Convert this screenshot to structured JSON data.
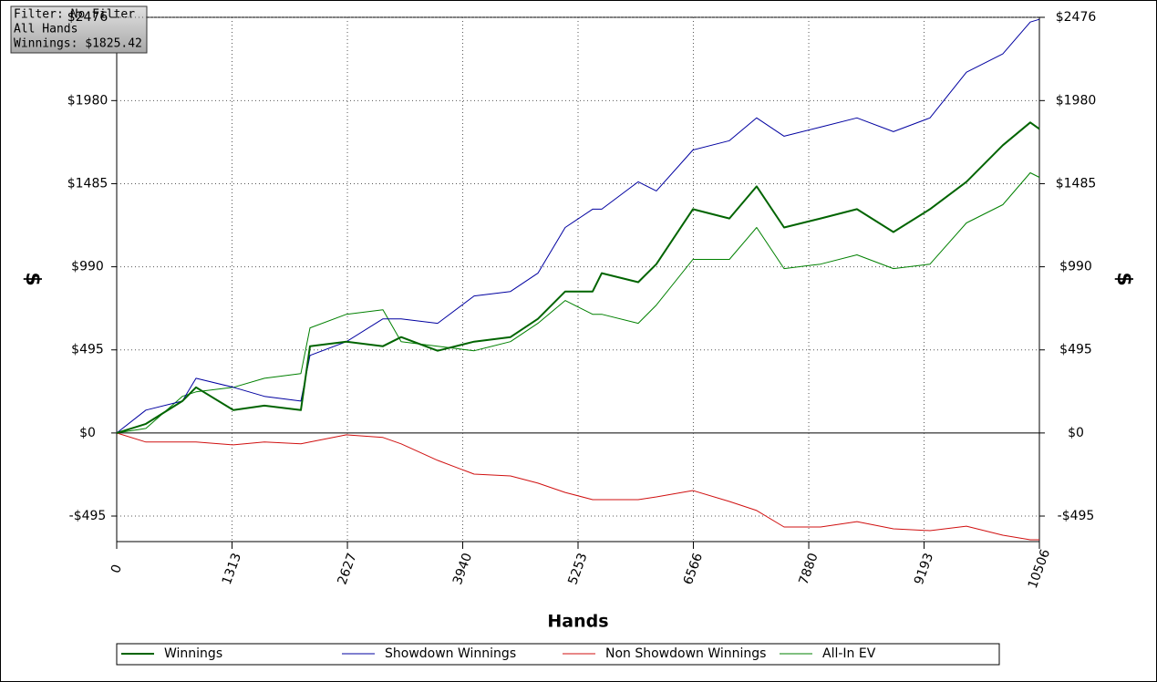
{
  "chart_data": {
    "type": "line",
    "info": [
      "Filter: No Filter",
      "All Hands",
      "Winnings: $1825.42"
    ],
    "x_label": "Hands",
    "y_label": "$",
    "x": [
      0,
      332,
      747,
      903,
      1329,
      1682,
      2097,
      2201,
      2616,
      3031,
      3239,
      3654,
      4069,
      4484,
      4796,
      5107,
      5419,
      5523,
      5938,
      6145,
      6561,
      6976,
      7287,
      7599,
      8014,
      8429,
      8844,
      9260,
      9675,
      10090,
      10402,
      10506
    ],
    "series": [
      {
        "name": "Winnings",
        "color": "#006400",
        "values": [
          0,
          54,
          190,
          272,
          136,
          163,
          136,
          517,
          544,
          517,
          571,
          490,
          544,
          571,
          680,
          843,
          843,
          952,
          898,
          1006,
          1333,
          1278,
          1469,
          1224,
          1278,
          1333,
          1197,
          1333,
          1496,
          1714,
          1850,
          1811
        ]
      },
      {
        "name": "Showdown Winnings",
        "color": "#0000a0",
        "values": [
          0,
          136,
          190,
          326,
          272,
          218,
          190,
          462,
          544,
          680,
          680,
          653,
          816,
          843,
          952,
          1224,
          1333,
          1333,
          1496,
          1442,
          1686,
          1741,
          1877,
          1768,
          1822,
          1877,
          1795,
          1877,
          2149,
          2258,
          2448,
          2464
        ]
      },
      {
        "name": "Non Showdown Winnings",
        "color": "#d01010",
        "values": [
          0,
          -54,
          -54,
          -54,
          -71,
          -54,
          -65,
          -54,
          -11,
          -27,
          -65,
          -163,
          -245,
          -256,
          -299,
          -354,
          -397,
          -397,
          -397,
          -381,
          -343,
          -408,
          -462,
          -560,
          -560,
          -528,
          -571,
          -582,
          -555,
          -609,
          -636,
          -636
        ]
      },
      {
        "name": "All-In EV",
        "color": "#008000",
        "values": [
          0,
          27,
          218,
          245,
          272,
          326,
          354,
          626,
          707,
          734,
          544,
          517,
          490,
          544,
          653,
          789,
          707,
          707,
          653,
          762,
          1034,
          1034,
          1224,
          979,
          1006,
          1061,
          979,
          1006,
          1251,
          1360,
          1550,
          1523
        ]
      }
    ],
    "xlim": [
      0,
      10506
    ],
    "xticks": [
      0,
      1313,
      2627,
      3940,
      5253,
      6566,
      7880,
      9193,
      10506
    ],
    "ylim": [
      -647,
      2476
    ],
    "yticks": [
      {
        "value": -495,
        "label": "-$495"
      },
      {
        "value": 0,
        "label": "$0"
      },
      {
        "value": 495,
        "label": "$495"
      },
      {
        "value": 990,
        "label": "$990"
      },
      {
        "value": 1485,
        "label": "$1485"
      },
      {
        "value": 1980,
        "label": "$1980"
      },
      {
        "value": 2476,
        "label": "$2476"
      }
    ],
    "grid": true
  }
}
